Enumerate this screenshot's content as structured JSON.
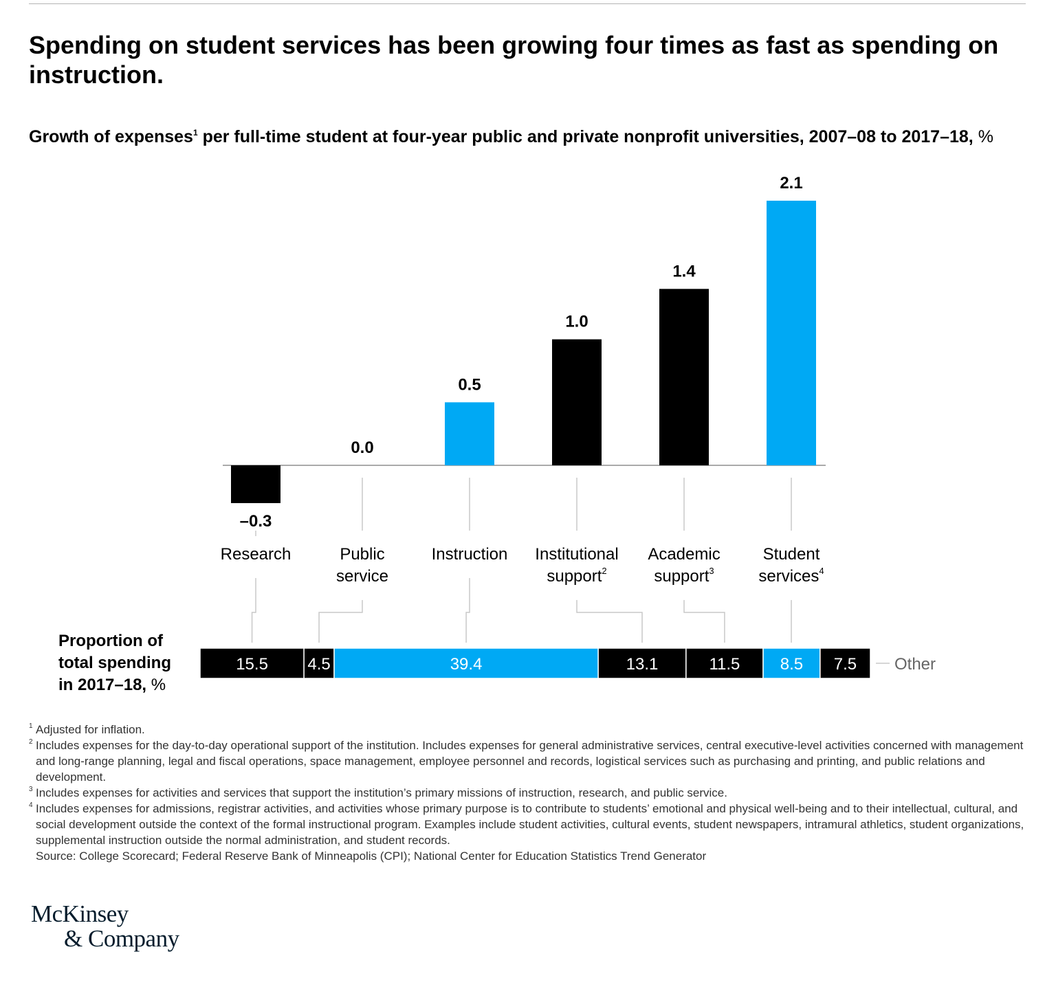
{
  "headline": "Spending on student services has been growing four times as fast as spending on instruction.",
  "subtitle": {
    "pre": "Growth of expenses",
    "sup": "1",
    "post": " per full-time student at four-year public and private nonprofit universities, 2007–08 to 2017–18,",
    "unit": "%"
  },
  "colors": {
    "accent": "#00a9f4",
    "dark": "#000000",
    "axis": "#aaaaaa"
  },
  "chart_data": {
    "type": "bar",
    "title": "Growth of expenses per full-time student at four-year public and private nonprofit universities, 2007–08 to 2017–18, %",
    "categories": [
      {
        "lines": [
          "Research"
        ],
        "sup": ""
      },
      {
        "lines": [
          "Public",
          "service"
        ],
        "sup": ""
      },
      {
        "lines": [
          "Instruction"
        ],
        "sup": ""
      },
      {
        "lines": [
          "Institutional",
          "support"
        ],
        "sup": "2"
      },
      {
        "lines": [
          "Academic",
          "support"
        ],
        "sup": "3"
      },
      {
        "lines": [
          "Student",
          "services"
        ],
        "sup": "4"
      }
    ],
    "values": [
      -0.3,
      0.0,
      0.5,
      1.0,
      1.4,
      2.1
    ],
    "value_labels": [
      "–0.3",
      "0.0",
      "0.5",
      "1.0",
      "1.4",
      "2.1"
    ],
    "highlight": [
      false,
      false,
      true,
      false,
      false,
      true
    ],
    "ylim": [
      -0.3,
      2.1
    ],
    "proportion": {
      "label_lines": [
        "Proportion of",
        "total spending",
        "in 2017–18,"
      ],
      "unit": "%",
      "segments": [
        {
          "value": 15.5,
          "label": "15.5",
          "highlight": false,
          "category_index": 0
        },
        {
          "value": 4.5,
          "label": "4.5",
          "highlight": false,
          "category_index": 1
        },
        {
          "value": 39.4,
          "label": "39.4",
          "highlight": true,
          "category_index": 2
        },
        {
          "value": 13.1,
          "label": "13.1",
          "highlight": false,
          "category_index": 3
        },
        {
          "value": 11.5,
          "label": "11.5",
          "highlight": false,
          "category_index": 4
        },
        {
          "value": 8.5,
          "label": "8.5",
          "highlight": true,
          "category_index": 5
        },
        {
          "value": 7.5,
          "label": "7.5",
          "highlight": false,
          "category_index": -1
        }
      ],
      "other_label": "Other"
    }
  },
  "footnotes": [
    {
      "mark": "1",
      "text": "Adjusted for inflation."
    },
    {
      "mark": "2",
      "text": "Includes expenses for the day-to-day operational support of the institution. Includes expenses for general administrative services, central executive-level activities concerned with management and long-range planning, legal and fiscal operations, space management, employee personnel and records, logistical services such as purchasing and printing, and public relations and development."
    },
    {
      "mark": "3",
      "text": "Includes expenses for activities and services that support the institution’s primary missions of instruction, research, and public service."
    },
    {
      "mark": "4",
      "text": "Includes expenses for admissions, registrar activities, and activities whose primary purpose is to contribute to students’ emotional and physical well-being and to their intellectual, cultural, and social development outside the context of the formal instructional program. Examples include student activities, cultural events, student newspapers, intramural athletics, student organizations, supplemental instruction outside the normal administration, and student records."
    },
    {
      "mark": "",
      "text": "Source: College Scorecard; Federal Reserve Bank of Minneapolis (CPI); National Center for Education Statistics Trend Generator"
    }
  ],
  "logo": {
    "line1": "McKinsey",
    "line2": "& Company"
  }
}
